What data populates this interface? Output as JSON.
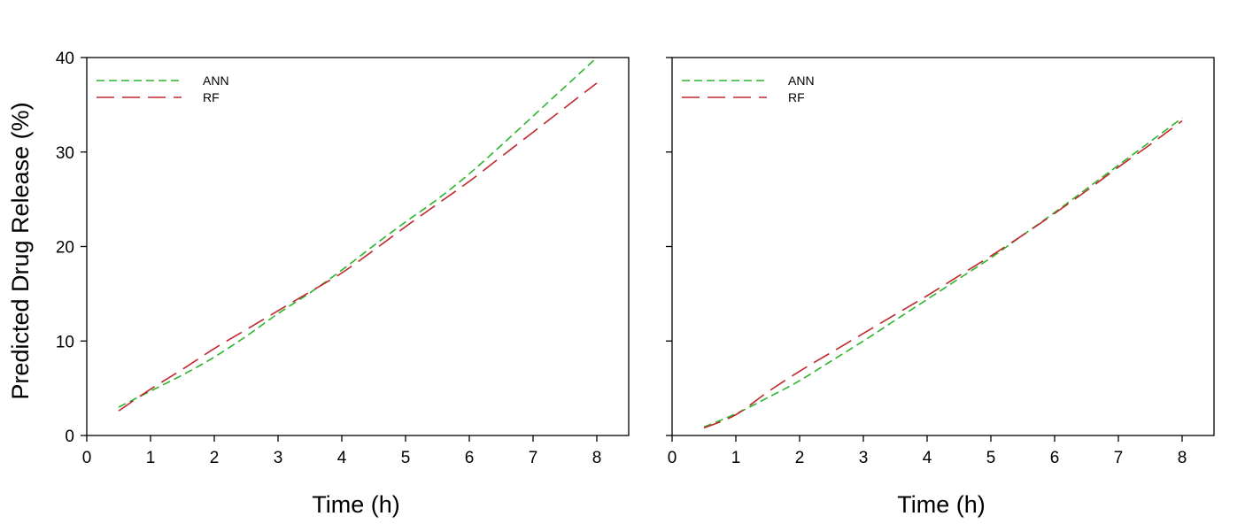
{
  "colors": {
    "ANN": "#2db52d",
    "RF": "#c0282e",
    "axis": "#000000"
  },
  "chart_data": [
    {
      "type": "line",
      "title": "",
      "xlabel": "Time (h)",
      "ylabel": "Predicted Drug Release (%)",
      "xlim": [
        0,
        8.5
      ],
      "ylim": [
        0,
        40
      ],
      "xticks": [
        0,
        1,
        2,
        3,
        4,
        5,
        6,
        7,
        8
      ],
      "yticks": [
        0,
        10,
        20,
        30,
        40
      ],
      "legend_position": "top-left",
      "grid": false,
      "series": [
        {
          "name": "ANN",
          "x": [
            0.5,
            1,
            1.5,
            2,
            2.5,
            3,
            3.5,
            4,
            4.5,
            5,
            5.5,
            6,
            6.5,
            7,
            7.5,
            8
          ],
          "y": [
            3.0,
            4.7,
            6.4,
            8.3,
            10.5,
            12.9,
            15.1,
            17.5,
            20.1,
            22.6,
            25.0,
            27.7,
            30.7,
            33.8,
            36.9,
            40.0
          ]
        },
        {
          "name": "RF",
          "x": [
            0.5,
            1,
            1.5,
            2,
            2.5,
            3,
            3.5,
            4,
            4.5,
            5,
            5.5,
            6,
            6.5,
            7,
            7.5,
            8
          ],
          "y": [
            2.6,
            4.9,
            7.0,
            9.2,
            11.2,
            13.2,
            15.2,
            17.2,
            19.6,
            22.1,
            24.5,
            26.9,
            29.5,
            32.1,
            34.7,
            37.3
          ]
        }
      ]
    },
    {
      "type": "line",
      "title": "",
      "xlabel": "Time (h)",
      "ylabel": "",
      "xlim": [
        0,
        8.5
      ],
      "ylim": [
        0,
        40
      ],
      "xticks": [
        0,
        1,
        2,
        3,
        4,
        5,
        6,
        7,
        8
      ],
      "yticks": [
        0,
        10,
        20,
        30,
        40
      ],
      "ytick_labels_shown": false,
      "legend_position": "top-left",
      "grid": false,
      "series": [
        {
          "name": "ANN",
          "x": [
            0.5,
            1,
            1.5,
            2,
            2.5,
            3,
            3.5,
            4,
            4.5,
            5,
            5.5,
            6,
            6.5,
            7,
            7.5,
            8
          ],
          "y": [
            0.9,
            2.3,
            4.0,
            5.8,
            7.9,
            10.0,
            12.2,
            14.4,
            16.6,
            18.8,
            21.2,
            23.6,
            26.1,
            28.6,
            31.1,
            33.6
          ]
        },
        {
          "name": "RF",
          "x": [
            0.5,
            1,
            1.5,
            2,
            2.5,
            3,
            3.5,
            4,
            4.5,
            5,
            5.5,
            6,
            6.5,
            7,
            7.5,
            8
          ],
          "y": [
            0.8,
            2.2,
            4.6,
            6.8,
            8.8,
            10.8,
            12.8,
            14.8,
            16.9,
            19.0,
            21.2,
            23.5,
            25.9,
            28.4,
            30.8,
            33.3
          ]
        }
      ]
    }
  ]
}
